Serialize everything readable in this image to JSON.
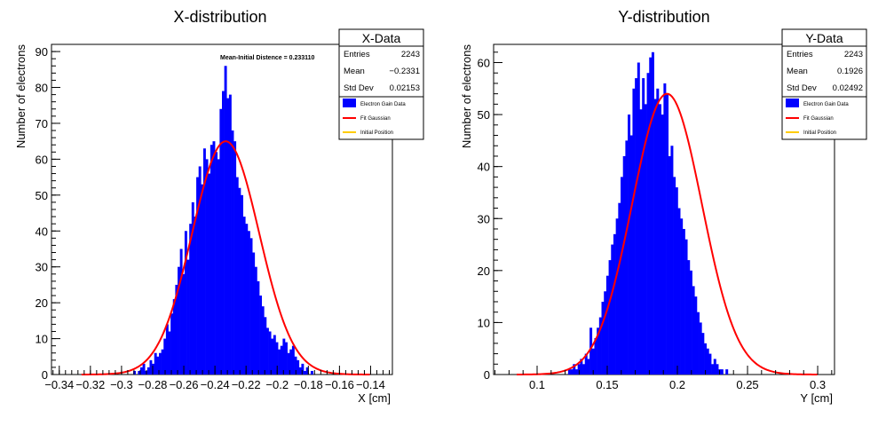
{
  "chart_data": [
    {
      "type": "bar",
      "title": "X-distribution",
      "xlabel": "X [cm]",
      "ylabel": "Number of electrons",
      "xlim": [
        -0.345,
        -0.126
      ],
      "ylim": [
        0,
        92
      ],
      "xticks": [
        -0.34,
        -0.32,
        -0.3,
        -0.28,
        -0.26,
        -0.24,
        -0.22,
        -0.2,
        -0.18,
        -0.16,
        -0.14
      ],
      "xtick_labels": [
        "−0.34",
        "−0.32",
        "−0.3",
        "−0.28",
        "−0.26",
        "−0.24",
        "−0.22",
        "−0.2",
        "−0.18",
        "−0.16",
        "−0.14"
      ],
      "yticks": [
        0,
        10,
        20,
        30,
        40,
        50,
        60,
        70,
        80,
        90
      ],
      "ytick_labels": [
        "0",
        "10",
        "20",
        "30",
        "40",
        "50",
        "60",
        "70",
        "80",
        "90"
      ],
      "histogram": {
        "bin_start": -0.3,
        "bin_width": 0.0015,
        "counts": [
          0,
          0,
          0,
          0,
          0,
          1,
          0,
          1,
          2,
          3,
          1,
          2,
          4,
          3,
          6,
          5,
          6,
          7,
          10,
          14,
          12,
          17,
          21,
          25,
          30,
          35,
          28,
          40,
          32,
          42,
          48,
          44,
          55,
          58,
          53,
          63,
          60,
          56,
          64,
          65,
          62,
          60,
          74,
          79,
          86,
          77,
          78,
          68,
          65,
          55,
          52,
          50,
          44,
          42,
          40,
          38,
          34,
          30,
          26,
          22,
          19,
          16,
          13,
          12,
          10,
          11,
          9,
          7,
          8,
          10,
          9,
          6,
          7,
          8,
          5,
          4,
          2,
          3,
          1,
          2,
          0,
          1
        ]
      },
      "fit": {
        "name": "Fit Gaussian",
        "type": "gaussian",
        "amplitude": 65,
        "mean": -0.2331,
        "sigma": 0.02153
      },
      "annotation": "Mean-Initial Distence = 0.233110",
      "stats": {
        "title": "X-Data",
        "rows": [
          {
            "label": "Entries",
            "value": "2243"
          },
          {
            "label": "Mean",
            "value": "−0.2331"
          },
          {
            "label": "Std Dev",
            "value": "0.02153"
          }
        ]
      },
      "legend": [
        {
          "label": "Electron Gain Data",
          "kind": "fill",
          "color": "#0000ff"
        },
        {
          "label": "Fit Gaussian",
          "kind": "line",
          "color": "#ff0000"
        },
        {
          "label": "Initial Position",
          "kind": "line",
          "color": "#ffcc00"
        }
      ],
      "legend_position": "top-right"
    },
    {
      "type": "bar",
      "title": "Y-distribution",
      "xlabel": "Y [cm]",
      "ylabel": "Number of electrons",
      "xlim": [
        0.069,
        0.312
      ],
      "ylim": [
        0,
        63.5
      ],
      "xticks": [
        0.1,
        0.15,
        0.2,
        0.25,
        0.3
      ],
      "xtick_labels": [
        "0.1",
        "0.15",
        "0.2",
        "0.25",
        "0.3"
      ],
      "yticks": [
        0,
        10,
        20,
        30,
        40,
        50,
        60
      ],
      "ytick_labels": [
        "0",
        "10",
        "20",
        "30",
        "40",
        "50",
        "60"
      ],
      "histogram": {
        "bin_start": 0.1,
        "bin_width": 0.0017,
        "counts": [
          0,
          0,
          0,
          0,
          0,
          0,
          0,
          0,
          0,
          0,
          0,
          0,
          0,
          1,
          1,
          2,
          1,
          2,
          3,
          2,
          4,
          3,
          9,
          5,
          7,
          9,
          11,
          14,
          16,
          19,
          22,
          25,
          27,
          30,
          33,
          38,
          42,
          45,
          50,
          46,
          55,
          57,
          60,
          51,
          57,
          52,
          58,
          61,
          62,
          53,
          55,
          52,
          50,
          56,
          54,
          42,
          44,
          38,
          36,
          32,
          30,
          28,
          26,
          22,
          20,
          17,
          15,
          12,
          10,
          8,
          6,
          5,
          4,
          2,
          3,
          2,
          1,
          1,
          0,
          1,
          0,
          0,
          0,
          0,
          0
        ]
      },
      "fit": {
        "name": "Fit Gaussian",
        "type": "gaussian",
        "amplitude": 54,
        "mean": 0.1926,
        "sigma": 0.02492
      },
      "stats": {
        "title": "Y-Data",
        "rows": [
          {
            "label": "Entries",
            "value": "2243"
          },
          {
            "label": "Mean",
            "value": "0.1926"
          },
          {
            "label": "Std Dev",
            "value": "0.02492"
          }
        ]
      },
      "legend": [
        {
          "label": "Electron Gain Data",
          "kind": "fill",
          "color": "#0000ff"
        },
        {
          "label": "Fit Gaussian",
          "kind": "line",
          "color": "#ff0000"
        },
        {
          "label": "Initial Position",
          "kind": "line",
          "color": "#ffcc00"
        }
      ],
      "legend_position": "top-right"
    }
  ]
}
